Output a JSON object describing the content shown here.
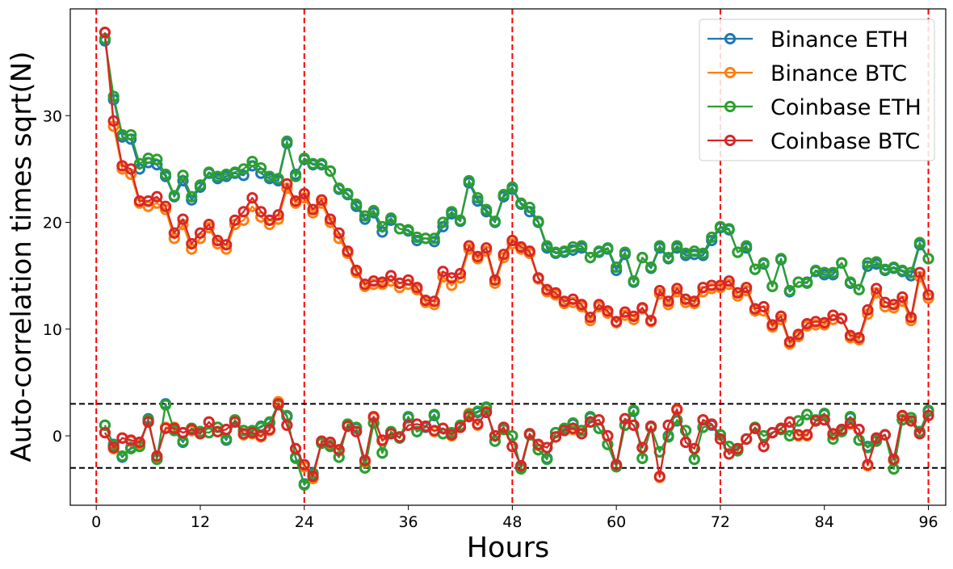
{
  "chart_data": {
    "type": "line",
    "xlabel": "Hours",
    "ylabel": "Auto-correlation times sqrt(N)",
    "xlim": [
      -3,
      98
    ],
    "ylim": [
      -6.5,
      40
    ],
    "x_ticks": [
      0,
      12,
      24,
      36,
      48,
      60,
      72,
      84,
      96
    ],
    "y_ticks": [
      0,
      10,
      20,
      30
    ],
    "vlines": {
      "x": [
        0,
        24,
        48,
        72,
        96
      ],
      "color": "#ff0000",
      "style": "dashed"
    },
    "hlines": {
      "y": [
        3,
        -3
      ],
      "color": "#000000",
      "style": "dashed"
    },
    "legend_position": "top-right",
    "x": [
      1,
      2,
      3,
      4,
      5,
      6,
      7,
      8,
      9,
      10,
      11,
      12,
      13,
      14,
      15,
      16,
      17,
      18,
      19,
      20,
      21,
      22,
      23,
      24,
      25,
      26,
      27,
      28,
      29,
      30,
      31,
      32,
      33,
      34,
      35,
      36,
      37,
      38,
      39,
      40,
      41,
      42,
      43,
      44,
      45,
      46,
      47,
      48,
      49,
      50,
      51,
      52,
      53,
      54,
      55,
      56,
      57,
      58,
      59,
      60,
      61,
      62,
      63,
      64,
      65,
      66,
      67,
      68,
      69,
      70,
      71,
      72,
      73,
      74,
      75,
      76,
      77,
      78,
      79,
      80,
      81,
      82,
      83,
      84,
      85,
      86,
      87,
      88,
      89,
      90,
      91,
      92,
      93,
      94,
      95,
      96
    ],
    "series": [
      {
        "name": "Binance ETH",
        "color": "#1f77b4",
        "values": [
          37.0,
          31.5,
          28.0,
          27.8,
          25.0,
          25.6,
          25.4,
          24.3,
          22.4,
          23.9,
          22.1,
          23.3,
          24.6,
          24.1,
          24.3,
          24.6,
          24.4,
          25.3,
          24.6,
          24.1,
          23.9,
          27.4,
          24.5,
          25.9,
          25.4,
          25.4,
          24.8,
          23.1,
          22.6,
          21.5,
          20.3,
          20.9,
          19.1,
          20.2,
          19.4,
          19.2,
          18.3,
          18.5,
          18.2,
          19.6,
          20.8,
          20.1,
          23.7,
          22.0,
          21.0,
          20.0,
          22.4,
          23.1,
          21.7,
          21.0,
          20.0,
          17.6,
          17.1,
          17.2,
          17.4,
          17.6,
          16.7,
          17.2,
          17.5,
          15.5,
          17.0,
          14.4,
          16.7,
          15.7,
          17.6,
          16.6,
          17.6,
          16.9,
          17.0,
          16.9,
          18.3,
          19.5,
          19.3,
          17.2,
          17.6,
          15.6,
          16.1,
          14.0,
          16.5,
          13.5,
          14.4,
          14.4,
          15.4,
          15.1,
          15.1,
          16.2,
          14.3,
          13.7,
          15.9,
          16.1,
          15.5,
          15.7,
          15.4,
          15.0,
          17.9,
          16.6
        ],
        "values_lower": [
          1.0,
          -0.8,
          -2.0,
          -1.1,
          -0.9,
          1.6,
          -2.2,
          3.0,
          0.5,
          -0.6,
          0.7,
          0.4,
          0.3,
          0.8,
          -0.4,
          1.4,
          0.5,
          0.4,
          0.9,
          1.2,
          3.0,
          1.8,
          -2.0,
          -4.5,
          -3.5,
          -0.6,
          -0.9,
          -2.0,
          1.0,
          0.7,
          -3.0,
          1.2,
          -1.6,
          0.3,
          -0.2,
          1.7,
          0.4,
          0.8,
          1.9,
          0.2,
          0.3,
          0.9,
          1.9,
          2.2,
          2.6,
          -0.5,
          0.6,
          0.0,
          -3.0,
          0.1,
          -1.3,
          -2.1,
          0.3,
          0.6,
          1.1,
          0.5,
          1.7,
          0.7,
          -0.8,
          -2.8,
          1.0,
          2.3,
          -2.1,
          0.8,
          -1.5,
          0.0,
          1.4,
          0.5,
          -2.2,
          0.8,
          1.0,
          0.1,
          -1.0,
          -1.3,
          -0.3,
          0.7,
          0.0,
          0.3,
          0.6,
          0.0,
          1.4,
          2.0,
          1.4,
          2.0,
          0.1,
          0.4,
          1.7,
          -0.4,
          -1.0,
          -0.4,
          0.1,
          -3.1,
          1.5,
          1.7,
          0.4,
          2.3
        ]
      },
      {
        "name": "Binance BTC",
        "color": "#ff7f0e",
        "values": [
          37.8,
          29.0,
          25.0,
          24.5,
          21.8,
          21.5,
          21.8,
          21.2,
          18.5,
          19.8,
          17.5,
          18.5,
          19.5,
          18.0,
          17.5,
          19.8,
          20.2,
          21.5,
          20.5,
          19.8,
          20.3,
          23.2,
          21.8,
          22.3,
          20.9,
          21.8,
          20.0,
          18.5,
          17.1,
          15.3,
          14.0,
          14.2,
          14.2,
          14.5,
          13.9,
          14.2,
          13.7,
          12.5,
          12.3,
          14.9,
          14.1,
          14.8,
          17.5,
          16.6,
          17.3,
          14.3,
          16.7,
          18.0,
          17.5,
          17.1,
          14.7,
          13.5,
          13.2,
          12.4,
          12.5,
          12.1,
          10.8,
          12.1,
          11.5,
          10.6,
          11.3,
          10.9,
          11.9,
          10.7,
          13.3,
          12.3,
          13.5,
          12.5,
          12.4,
          13.5,
          13.8,
          13.9,
          14.2,
          13.1,
          13.6,
          11.7,
          11.7,
          10.2,
          10.9,
          8.6,
          9.3,
          10.3,
          10.4,
          10.4,
          10.9,
          11.0,
          9.2,
          9.0,
          11.4,
          13.4,
          12.1,
          12.0,
          12.6,
          10.8,
          14.9,
          12.9
        ],
        "values_lower": [
          0.3,
          -1.2,
          -0.2,
          -0.5,
          -0.8,
          1.3,
          -2.0,
          0.8,
          0.8,
          0.3,
          0.5,
          0.2,
          1.3,
          0.4,
          0.6,
          1.3,
          0.1,
          0.2,
          -0.1,
          0.5,
          3.2,
          1.0,
          -1.2,
          -2.9,
          -4.0,
          -0.6,
          -0.7,
          -1.4,
          0.9,
          0.4,
          -2.5,
          1.7,
          -0.5,
          0.2,
          -0.1,
          1.0,
          1.1,
          0.9,
          0.4,
          0.7,
          0.0,
          0.8,
          2.1,
          1.0,
          2.3,
          0.0,
          0.7,
          -1.0,
          -2.8,
          0.2,
          -0.9,
          -1.1,
          -0.1,
          0.5,
          0.6,
          0.2,
          1.3,
          1.5,
          0.0,
          -2.8,
          1.6,
          1.0,
          -1.1,
          0.9,
          -3.9,
          1.0,
          2.4,
          -0.6,
          -1.2,
          1.5,
          1.1,
          -0.3,
          -1.7,
          -1.2,
          -0.3,
          0.7,
          -1.0,
          0.3,
          0.7,
          1.3,
          0.0,
          0.0,
          1.4,
          1.5,
          0.1,
          0.6,
          1.1,
          0.6,
          -2.8,
          -0.2,
          0.1,
          -2.3,
          1.8,
          1.4,
          0.2,
          1.9
        ]
      },
      {
        "name": "Coinbase ETH",
        "color": "#2ca02c",
        "values": [
          37.2,
          31.8,
          28.2,
          28.2,
          25.5,
          26.0,
          25.9,
          24.5,
          22.5,
          24.4,
          22.4,
          23.5,
          24.7,
          24.3,
          24.5,
          24.7,
          25.0,
          25.7,
          25.1,
          24.3,
          24.1,
          27.6,
          24.3,
          26.0,
          25.5,
          25.5,
          24.8,
          23.2,
          22.7,
          21.7,
          20.6,
          21.1,
          19.6,
          20.4,
          19.4,
          19.3,
          18.6,
          18.5,
          18.5,
          20.0,
          21.0,
          20.2,
          23.9,
          22.3,
          21.2,
          20.1,
          22.6,
          23.3,
          21.8,
          21.4,
          20.1,
          17.8,
          17.2,
          17.3,
          17.7,
          17.8,
          16.7,
          17.3,
          17.6,
          15.8,
          17.2,
          14.5,
          16.7,
          15.8,
          17.8,
          16.7,
          17.8,
          17.1,
          17.3,
          17.1,
          18.6,
          19.6,
          19.4,
          17.2,
          17.8,
          15.6,
          16.2,
          14.0,
          16.6,
          13.6,
          14.4,
          14.3,
          15.5,
          15.3,
          15.3,
          16.2,
          14.4,
          13.7,
          16.2,
          16.3,
          15.6,
          15.8,
          15.5,
          15.3,
          18.1,
          16.6
        ],
        "values_lower": [
          1.0,
          -0.9,
          -1.9,
          -1.2,
          -1.0,
          1.5,
          -2.2,
          2.9,
          0.5,
          -0.5,
          0.7,
          0.4,
          0.3,
          0.8,
          -0.3,
          1.5,
          0.5,
          0.5,
          0.8,
          1.3,
          2.9,
          1.9,
          -2.1,
          -4.6,
          -3.6,
          -0.7,
          -1.0,
          -2.0,
          1.1,
          0.8,
          -3.0,
          1.2,
          -1.6,
          0.4,
          -0.2,
          1.8,
          0.4,
          0.9,
          2.0,
          0.2,
          0.3,
          1.0,
          2.0,
          2.3,
          2.7,
          -0.5,
          0.6,
          0.0,
          -3.1,
          0.1,
          -1.3,
          -2.2,
          0.3,
          0.7,
          1.2,
          0.5,
          1.8,
          0.7,
          -0.8,
          -2.9,
          1.0,
          2.4,
          -2.1,
          0.8,
          -1.5,
          -0.1,
          1.5,
          0.5,
          -2.2,
          0.8,
          1.1,
          0.1,
          -1.0,
          -1.4,
          -0.3,
          0.8,
          0.0,
          0.3,
          0.6,
          0.0,
          1.4,
          2.0,
          1.5,
          2.1,
          -0.3,
          0.4,
          1.8,
          -0.4,
          -1.1,
          -0.5,
          0.1,
          -3.1,
          1.5,
          1.7,
          0.4,
          2.4
        ]
      },
      {
        "name": "Coinbase BTC",
        "color": "#d62728",
        "values": [
          37.8,
          29.5,
          25.3,
          25.0,
          22.0,
          22.0,
          22.4,
          21.5,
          19.0,
          20.3,
          18.0,
          19.0,
          19.8,
          18.3,
          17.9,
          20.2,
          21.0,
          22.3,
          21.0,
          20.2,
          20.7,
          23.6,
          22.0,
          22.7,
          21.2,
          22.1,
          20.3,
          19.0,
          17.3,
          15.5,
          14.2,
          14.5,
          14.4,
          15.0,
          14.3,
          14.6,
          13.9,
          12.7,
          12.6,
          15.4,
          14.8,
          15.2,
          17.8,
          16.8,
          17.6,
          14.6,
          17.0,
          18.3,
          17.7,
          17.3,
          14.8,
          13.7,
          13.4,
          12.6,
          12.8,
          12.3,
          11.1,
          12.3,
          11.7,
          10.7,
          11.6,
          11.2,
          12.0,
          10.8,
          13.6,
          12.6,
          13.8,
          12.8,
          12.6,
          13.9,
          14.1,
          14.1,
          14.5,
          13.4,
          13.9,
          11.9,
          12.1,
          10.4,
          11.2,
          8.8,
          9.5,
          10.5,
          10.7,
          10.6,
          11.3,
          11.0,
          9.4,
          9.2,
          11.8,
          13.8,
          12.5,
          12.3,
          13.0,
          11.1,
          15.3,
          13.2
        ],
        "values_lower": [
          0.3,
          -1.1,
          -0.2,
          -0.4,
          -0.6,
          1.3,
          -1.9,
          0.7,
          0.7,
          0.3,
          0.6,
          0.2,
          1.3,
          0.4,
          0.6,
          1.3,
          0.2,
          0.3,
          0.0,
          0.6,
          3.0,
          1.0,
          -1.2,
          -2.7,
          -3.8,
          -0.5,
          -0.6,
          -1.3,
          0.9,
          0.4,
          -2.3,
          1.8,
          -0.4,
          0.2,
          -0.1,
          1.0,
          1.1,
          0.9,
          0.5,
          0.7,
          0.1,
          0.8,
          1.8,
          1.1,
          2.2,
          0.0,
          0.8,
          -1.0,
          -2.8,
          0.2,
          -0.8,
          -1.1,
          -0.1,
          0.5,
          0.7,
          0.2,
          1.3,
          1.5,
          0.0,
          -2.7,
          1.6,
          1.0,
          -1.1,
          0.9,
          -3.8,
          1.0,
          2.5,
          -0.6,
          -1.2,
          1.5,
          1.1,
          -0.3,
          -1.7,
          -1.2,
          -0.3,
          0.7,
          -1.0,
          0.3,
          0.7,
          1.3,
          0.1,
          0.1,
          1.4,
          1.5,
          0.2,
          0.6,
          1.2,
          0.6,
          -2.7,
          -0.2,
          0.1,
          -2.2,
          1.9,
          1.4,
          0.2,
          1.9
        ]
      }
    ]
  }
}
